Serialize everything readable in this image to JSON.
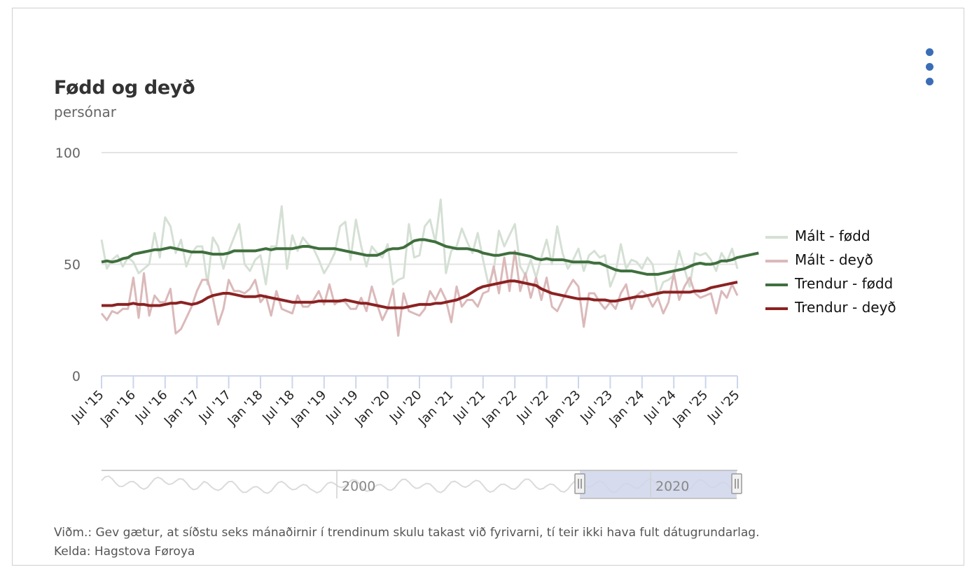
{
  "header": {
    "title": "Fødd og deyð",
    "subtitle": "persónar",
    "menu_icon": "context-menu-dots-icon"
  },
  "footer": {
    "note": "Viðm.: Gev gætur, at síðstu seks mánaðirnir í trendinum skulu takast við fyrivarni, tí teir ikki hava fult dátugrundarlag.",
    "source": "Kelda: Hagstova Føroya"
  },
  "navigator": {
    "labels": [
      "2000",
      "2020"
    ],
    "selected_range": [
      "Jul '15",
      "Jul '25"
    ],
    "handle_icon": "drag-handle-icon"
  },
  "colors": {
    "malt_fodd": "#d5e0d5",
    "malt_deyd": "#dbb9ba",
    "trend_fodd": "#3f6f3d",
    "trend_deyd": "#8b2222",
    "menu": "#3a6db5",
    "navigator_selection": "#cfd6ea"
  },
  "chart_data": {
    "type": "line",
    "title": "Fødd og deyð",
    "subtitle": "persónar",
    "xlabel": "",
    "ylabel": "",
    "ylim": [
      0,
      100
    ],
    "yticks": [
      0,
      50,
      100
    ],
    "grid": true,
    "legend_position": "right",
    "x_start": "2015-07",
    "x_end": "2025-07",
    "frequency": "monthly",
    "xtick_labels": [
      "Jul '15",
      "Jan '16",
      "Jul '16",
      "Jan '17",
      "Jul '17",
      "Jan '18",
      "Jul '18",
      "Jan '19",
      "Jul '19",
      "Jan '20",
      "Jul '20",
      "Jan '21",
      "Jul '21",
      "Jan '22",
      "Jul '22",
      "Jan '23",
      "Jul '23",
      "Jan '24",
      "Jul '24",
      "Jan '25",
      "Jul '25"
    ],
    "series": [
      {
        "name": "Mált - fødd",
        "values": [
          61,
          48,
          52,
          54,
          49,
          53,
          51,
          46,
          48,
          50,
          64,
          53,
          71,
          67,
          55,
          61,
          49,
          55,
          58,
          58,
          41,
          62,
          58,
          48,
          56,
          62,
          68,
          50,
          47,
          52,
          54,
          41,
          58,
          58,
          76,
          48,
          63,
          56,
          62,
          59,
          57,
          52,
          46,
          50,
          55,
          67,
          69,
          52,
          70,
          58,
          49,
          58,
          55,
          53,
          59,
          41,
          43,
          44,
          68,
          53,
          54,
          67,
          70,
          60,
          79,
          46,
          56,
          58,
          66,
          60,
          55,
          64,
          52,
          41,
          47,
          65,
          58,
          63,
          68,
          49,
          45,
          52,
          44,
          53,
          61,
          50,
          67,
          55,
          48,
          52,
          57,
          47,
          54,
          56,
          53,
          54,
          40,
          46,
          59,
          48,
          52,
          51,
          48,
          53,
          50,
          36,
          42,
          43,
          45,
          56,
          48,
          40,
          55,
          54,
          55,
          52,
          47,
          55,
          51,
          57,
          48
        ],
        "color": "#d5e0d5"
      },
      {
        "name": "Mált - deyð",
        "values": [
          28,
          25,
          29,
          28,
          30,
          30,
          44,
          26,
          46,
          27,
          36,
          33,
          33,
          39,
          19,
          21,
          26,
          31,
          38,
          43,
          43,
          35,
          23,
          30,
          43,
          38,
          38,
          37,
          39,
          43,
          33,
          36,
          27,
          38,
          30,
          29,
          28,
          36,
          31,
          31,
          34,
          38,
          32,
          41,
          32,
          34,
          33,
          30,
          30,
          35,
          29,
          40,
          32,
          25,
          30,
          39,
          18,
          37,
          29,
          28,
          27,
          30,
          38,
          34,
          39,
          34,
          24,
          40,
          31,
          34,
          34,
          31,
          37,
          38,
          49,
          37,
          53,
          38,
          56,
          38,
          46,
          35,
          44,
          34,
          44,
          31,
          29,
          34,
          39,
          43,
          40,
          22,
          37,
          37,
          33,
          30,
          33,
          30,
          37,
          41,
          30,
          36,
          38,
          36,
          31,
          35,
          28,
          33,
          46,
          34,
          40,
          44,
          37,
          35,
          36,
          37,
          28,
          38,
          35,
          41,
          36
        ],
        "color": "#dbb9ba"
      },
      {
        "name": "Trendur - fødd",
        "values": [
          51,
          51.5,
          51,
          51.5,
          52.5,
          53,
          54.5,
          55,
          55.5,
          56,
          56.5,
          56.5,
          57,
          57.5,
          57,
          56.5,
          56,
          55.5,
          55.5,
          55.5,
          55,
          54.5,
          54.5,
          54.5,
          55,
          56,
          56,
          56,
          56,
          56,
          56.5,
          57,
          56.5,
          57,
          57,
          57,
          57,
          57.5,
          58,
          58,
          57.5,
          57,
          57,
          57,
          57,
          56.5,
          56,
          55.5,
          55,
          54.5,
          54,
          54,
          54,
          55,
          56.5,
          57,
          57,
          57.5,
          59,
          60.5,
          61,
          61,
          60.5,
          60,
          59,
          58,
          57.5,
          57,
          57,
          57,
          56.5,
          56,
          55,
          54.5,
          54,
          54,
          54.5,
          55,
          55,
          54.5,
          54,
          53.5,
          52.5,
          52,
          52.5,
          52,
          52,
          52,
          51.5,
          51,
          51,
          51,
          51,
          50.5,
          50.5,
          49.5,
          48.5,
          47.5,
          47,
          47,
          47,
          46.5,
          46,
          45.5,
          45.5,
          45.5,
          46,
          46.5,
          47,
          47.5,
          48,
          49,
          50,
          50.5,
          50,
          50,
          50.5,
          51.5,
          51.5,
          52,
          53,
          53.5,
          54,
          54.5,
          55
        ],
        "color": "#3f6f3d"
      },
      {
        "name": "Trendur - deyð",
        "values": [
          31.5,
          31.5,
          31.5,
          32,
          32,
          32,
          32.5,
          32,
          32,
          31.5,
          31.5,
          31.5,
          32,
          32.5,
          32.5,
          33,
          32.5,
          32,
          32.5,
          33.5,
          35,
          36,
          36.5,
          37,
          37,
          36.5,
          36,
          35.5,
          35.5,
          35.5,
          36,
          35.5,
          35,
          34.5,
          34,
          33.5,
          33,
          33,
          33,
          33,
          33,
          33.5,
          33.5,
          33.5,
          33.5,
          33.5,
          34,
          33.5,
          33,
          32.5,
          32.5,
          32,
          31.5,
          31,
          30.5,
          30.5,
          30.5,
          30.5,
          31,
          31.5,
          32,
          32,
          32,
          32.5,
          32.5,
          33,
          33.5,
          34,
          35,
          36,
          37.5,
          39,
          40,
          40.5,
          41,
          41.5,
          42,
          42.5,
          42.5,
          42,
          41.5,
          41,
          40.5,
          39,
          38,
          37,
          36.5,
          36,
          35.5,
          35,
          34.5,
          34.5,
          34.5,
          34,
          34,
          34,
          33.5,
          33.5,
          34,
          34.5,
          35,
          35.5,
          35.5,
          36,
          36.5,
          37,
          37.5,
          37.5,
          37.5,
          37.5,
          37.5,
          37.5,
          38,
          38,
          38.5,
          39.5,
          40,
          40.5,
          41,
          41.5,
          42
        ],
        "color": "#8b2222"
      }
    ]
  }
}
